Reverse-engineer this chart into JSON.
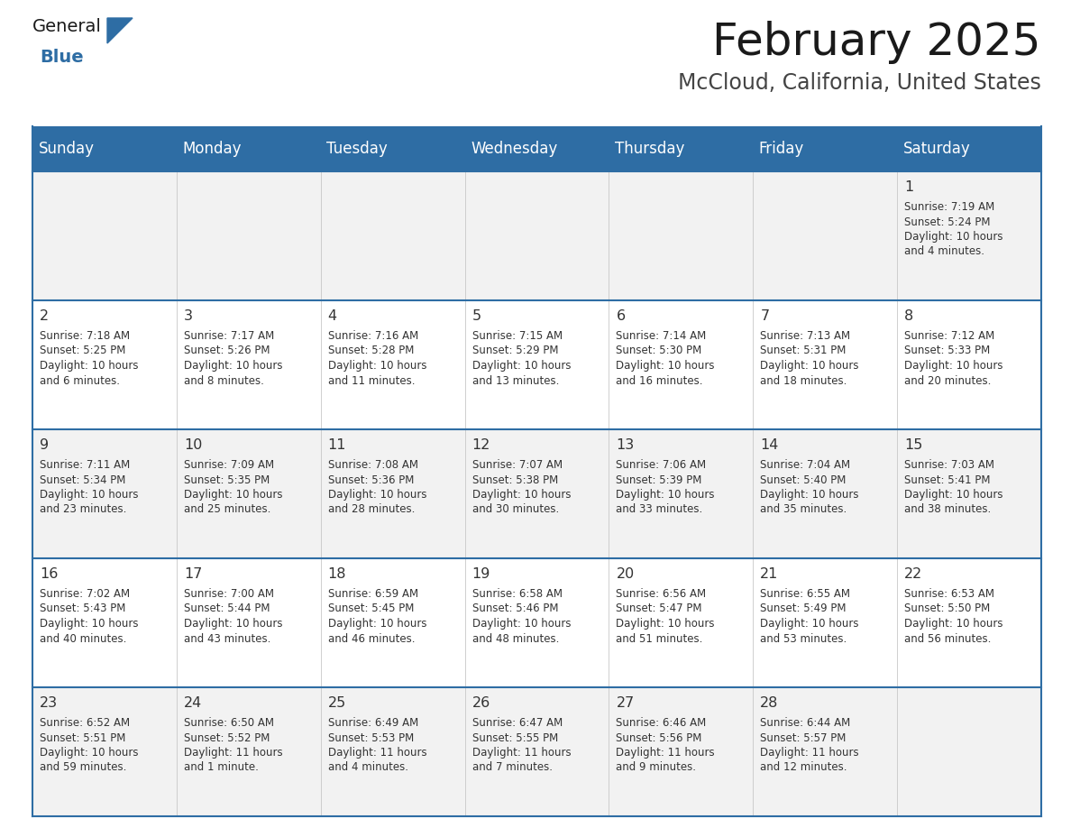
{
  "title": "February 2025",
  "subtitle": "McCloud, California, United States",
  "header_bg": "#2E6DA4",
  "header_text": "#FFFFFF",
  "odd_row_bg": "#F2F2F2",
  "even_row_bg": "#FFFFFF",
  "border_color": "#2E6DA4",
  "day_headers": [
    "Sunday",
    "Monday",
    "Tuesday",
    "Wednesday",
    "Thursday",
    "Friday",
    "Saturday"
  ],
  "logo_general_color": "#1a1a1a",
  "logo_blue_color": "#2E6DA4",
  "title_color": "#1a1a1a",
  "subtitle_color": "#444444",
  "day_num_color": "#333333",
  "cell_text_color": "#333333",
  "calendar": [
    [
      null,
      null,
      null,
      null,
      null,
      null,
      {
        "day": 1,
        "sunrise": "7:19 AM",
        "sunset": "5:24 PM",
        "daylight": "10 hours",
        "daylight2": "and 4 minutes."
      }
    ],
    [
      {
        "day": 2,
        "sunrise": "7:18 AM",
        "sunset": "5:25 PM",
        "daylight": "10 hours",
        "daylight2": "and 6 minutes."
      },
      {
        "day": 3,
        "sunrise": "7:17 AM",
        "sunset": "5:26 PM",
        "daylight": "10 hours",
        "daylight2": "and 8 minutes."
      },
      {
        "day": 4,
        "sunrise": "7:16 AM",
        "sunset": "5:28 PM",
        "daylight": "10 hours",
        "daylight2": "and 11 minutes."
      },
      {
        "day": 5,
        "sunrise": "7:15 AM",
        "sunset": "5:29 PM",
        "daylight": "10 hours",
        "daylight2": "and 13 minutes."
      },
      {
        "day": 6,
        "sunrise": "7:14 AM",
        "sunset": "5:30 PM",
        "daylight": "10 hours",
        "daylight2": "and 16 minutes."
      },
      {
        "day": 7,
        "sunrise": "7:13 AM",
        "sunset": "5:31 PM",
        "daylight": "10 hours",
        "daylight2": "and 18 minutes."
      },
      {
        "day": 8,
        "sunrise": "7:12 AM",
        "sunset": "5:33 PM",
        "daylight": "10 hours",
        "daylight2": "and 20 minutes."
      }
    ],
    [
      {
        "day": 9,
        "sunrise": "7:11 AM",
        "sunset": "5:34 PM",
        "daylight": "10 hours",
        "daylight2": "and 23 minutes."
      },
      {
        "day": 10,
        "sunrise": "7:09 AM",
        "sunset": "5:35 PM",
        "daylight": "10 hours",
        "daylight2": "and 25 minutes."
      },
      {
        "day": 11,
        "sunrise": "7:08 AM",
        "sunset": "5:36 PM",
        "daylight": "10 hours",
        "daylight2": "and 28 minutes."
      },
      {
        "day": 12,
        "sunrise": "7:07 AM",
        "sunset": "5:38 PM",
        "daylight": "10 hours",
        "daylight2": "and 30 minutes."
      },
      {
        "day": 13,
        "sunrise": "7:06 AM",
        "sunset": "5:39 PM",
        "daylight": "10 hours",
        "daylight2": "and 33 minutes."
      },
      {
        "day": 14,
        "sunrise": "7:04 AM",
        "sunset": "5:40 PM",
        "daylight": "10 hours",
        "daylight2": "and 35 minutes."
      },
      {
        "day": 15,
        "sunrise": "7:03 AM",
        "sunset": "5:41 PM",
        "daylight": "10 hours",
        "daylight2": "and 38 minutes."
      }
    ],
    [
      {
        "day": 16,
        "sunrise": "7:02 AM",
        "sunset": "5:43 PM",
        "daylight": "10 hours",
        "daylight2": "and 40 minutes."
      },
      {
        "day": 17,
        "sunrise": "7:00 AM",
        "sunset": "5:44 PM",
        "daylight": "10 hours",
        "daylight2": "and 43 minutes."
      },
      {
        "day": 18,
        "sunrise": "6:59 AM",
        "sunset": "5:45 PM",
        "daylight": "10 hours",
        "daylight2": "and 46 minutes."
      },
      {
        "day": 19,
        "sunrise": "6:58 AM",
        "sunset": "5:46 PM",
        "daylight": "10 hours",
        "daylight2": "and 48 minutes."
      },
      {
        "day": 20,
        "sunrise": "6:56 AM",
        "sunset": "5:47 PM",
        "daylight": "10 hours",
        "daylight2": "and 51 minutes."
      },
      {
        "day": 21,
        "sunrise": "6:55 AM",
        "sunset": "5:49 PM",
        "daylight": "10 hours",
        "daylight2": "and 53 minutes."
      },
      {
        "day": 22,
        "sunrise": "6:53 AM",
        "sunset": "5:50 PM",
        "daylight": "10 hours",
        "daylight2": "and 56 minutes."
      }
    ],
    [
      {
        "day": 23,
        "sunrise": "6:52 AM",
        "sunset": "5:51 PM",
        "daylight": "10 hours",
        "daylight2": "and 59 minutes."
      },
      {
        "day": 24,
        "sunrise": "6:50 AM",
        "sunset": "5:52 PM",
        "daylight": "11 hours",
        "daylight2": "and 1 minute."
      },
      {
        "day": 25,
        "sunrise": "6:49 AM",
        "sunset": "5:53 PM",
        "daylight": "11 hours",
        "daylight2": "and 4 minutes."
      },
      {
        "day": 26,
        "sunrise": "6:47 AM",
        "sunset": "5:55 PM",
        "daylight": "11 hours",
        "daylight2": "and 7 minutes."
      },
      {
        "day": 27,
        "sunrise": "6:46 AM",
        "sunset": "5:56 PM",
        "daylight": "11 hours",
        "daylight2": "and 9 minutes."
      },
      {
        "day": 28,
        "sunrise": "6:44 AM",
        "sunset": "5:57 PM",
        "daylight": "11 hours",
        "daylight2": "and 12 minutes."
      },
      null
    ]
  ]
}
